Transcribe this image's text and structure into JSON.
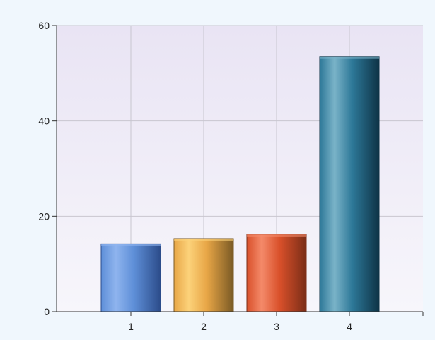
{
  "chart_data": {
    "type": "bar",
    "categories": [
      "1",
      "2",
      "3",
      "4"
    ],
    "values": [
      14.2,
      15.3,
      16.2,
      53.5
    ],
    "title": "",
    "xlabel": "",
    "ylabel": "",
    "ylim": [
      0,
      60
    ],
    "yticks": [
      0,
      20,
      40,
      60
    ],
    "grid": true,
    "legend": "none",
    "colors": {
      "background_top": "#e9e4f4",
      "background_bottom": "#f7f6fb",
      "outer_background": "#f0f7fd",
      "gridline": "#c8c6cf",
      "axis": "#333333",
      "bars": [
        {
          "dark": "#2c4c8a",
          "mid": "#8fb4ee",
          "light": "#5e8fd8"
        },
        {
          "dark": "#7a5a25",
          "mid": "#fcd27a",
          "light": "#e8a646"
        },
        {
          "dark": "#7a2d17",
          "mid": "#f48a6a",
          "light": "#d9502a"
        },
        {
          "dark": "#0e3346",
          "mid": "#7ab3c8",
          "light": "#2d7898"
        }
      ]
    }
  }
}
